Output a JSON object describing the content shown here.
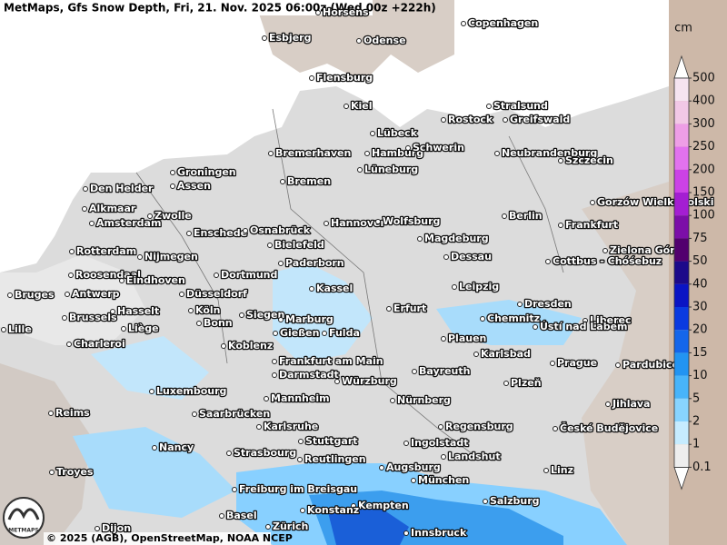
{
  "title": "MetMaps, Gfs Snow Depth, Fri, 21. Nov. 2025 06:00z (Wed 00z +222h)",
  "copyright": "© 2025 (AGB), OpenStreetMap, NOAA NCEP",
  "logo": "METMAPS",
  "legend": {
    "unit": "cm",
    "ticks": [
      500,
      400,
      300,
      250,
      200,
      150,
      100,
      75,
      50,
      40,
      30,
      20,
      15,
      10,
      5,
      2,
      1,
      0.1
    ],
    "colors": [
      "#ffffff",
      "#f6e4f0",
      "#f2c8e6",
      "#ee9ee6",
      "#e272ee",
      "#cc42e6",
      "#a41ed2",
      "#7c0ea8",
      "#52006e",
      "#1c0a8a",
      "#0a14c4",
      "#0a3ae0",
      "#1466ea",
      "#2294f2",
      "#48b4fa",
      "#88d4ff",
      "#c6ecff",
      "#eeeeee",
      "#ffffff"
    ]
  },
  "cities": [
    "Horsens",
    "Copenhagen",
    "Esbjerg",
    "Odense",
    "Flensburg",
    "Kiel",
    "Stralsund",
    "Rostock",
    "Greifswald",
    "Lübeck",
    "Bremerhaven",
    "Hamburg",
    "Schwerin",
    "Neubrandenburg",
    "Szczecin",
    "Groningen",
    "Lüneburg",
    "Den Helder",
    "Assen",
    "Bremen",
    "Gorzów Wielkopolski",
    "Alkmaar",
    "Zwolle",
    "Amsterdam",
    "Berlin",
    "Hannover",
    "Wolfsburg",
    "Frankfurt",
    "Enschede",
    "Osnabrück",
    "Magdeburg",
    "Bielefeld",
    "Zielona Góra",
    "Rotterdam",
    "Nijmegen",
    "Dessau",
    "Paderborn",
    "Cottbus - Chóśebuz",
    "Roosendaal",
    "Eindhoven",
    "Dortmund",
    "Kassel",
    "Leipzig",
    "Bruges",
    "Antwerp",
    "Düsseldorf",
    "Dresden",
    "Hasselt",
    "Köln",
    "Erfurt",
    "Siegen",
    "Brussels",
    "Marburg",
    "Chemnitz",
    "Liberec",
    "Bonn",
    "Ústí nad Labem",
    "Lille",
    "Liège",
    "Gießen",
    "Fulda",
    "Plauen",
    "Charleroi",
    "Koblenz",
    "Karlsbad",
    "Frankfurt am Main",
    "Prague",
    "Pardubice",
    "Darmstadt",
    "Bayreuth",
    "Würzburg",
    "Plzeň",
    "Luxembourg",
    "Mannheim",
    "Nürnberg",
    "Jihlava",
    "Reims",
    "Saarbrücken",
    "Regensburg",
    "Karlsruhe",
    "České Budějovice",
    "Stuttgart",
    "Ingolstadt",
    "Nancy",
    "Strasbourg",
    "Landshut",
    "Reutlingen",
    "Augsburg",
    "Troyes",
    "Linz",
    "München",
    "Freiburg im Breisgau",
    "Salzburg",
    "Kempten",
    "Konstanz",
    "Basel",
    "Zürich",
    "Innsbruck",
    "Dijon"
  ]
}
